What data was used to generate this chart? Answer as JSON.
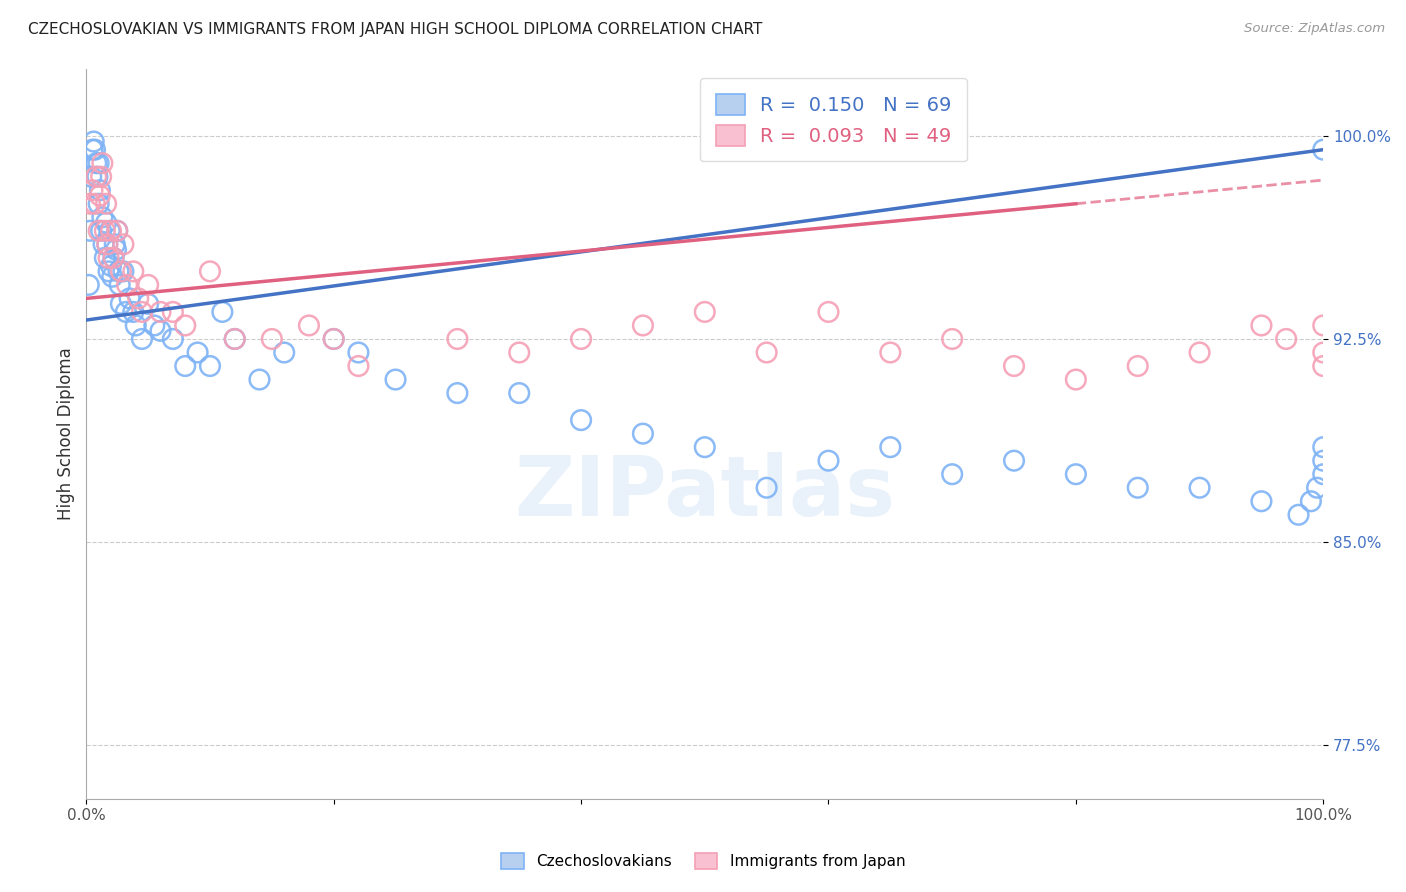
{
  "title": "CZECHOSLOVAKIAN VS IMMIGRANTS FROM JAPAN HIGH SCHOOL DIPLOMA CORRELATION CHART",
  "source": "Source: ZipAtlas.com",
  "ylabel": "High School Diploma",
  "xlim": [
    0,
    100
  ],
  "ylim": [
    75.5,
    102.5
  ],
  "yticks": [
    77.5,
    85.0,
    92.5,
    100.0
  ],
  "xticks": [
    0,
    20,
    40,
    60,
    80,
    100
  ],
  "xtick_labels": [
    "0.0%",
    "",
    "",
    "",
    "",
    "100.0%"
  ],
  "ytick_labels": [
    "77.5%",
    "85.0%",
    "92.5%",
    "100.0%"
  ],
  "legend_blue_R": "0.150",
  "legend_blue_N": "69",
  "legend_pink_R": "0.093",
  "legend_pink_N": "49",
  "blue_color": "#7EB3F5",
  "pink_color": "#F5A0B5",
  "blue_line_color": "#4472C4",
  "pink_line_color": "#E06080",
  "watermark": "ZIPatlas",
  "blue_x": [
    0.2,
    0.3,
    0.4,
    0.5,
    0.6,
    0.7,
    0.8,
    0.9,
    1.0,
    1.0,
    1.1,
    1.2,
    1.3,
    1.4,
    1.5,
    1.6,
    1.7,
    1.8,
    1.9,
    2.0,
    2.1,
    2.2,
    2.3,
    2.4,
    2.5,
    2.6,
    2.7,
    2.8,
    3.0,
    3.2,
    3.5,
    3.8,
    4.0,
    4.5,
    5.0,
    5.5,
    6.0,
    7.0,
    8.0,
    9.0,
    10.0,
    11.0,
    12.0,
    14.0,
    16.0,
    20.0,
    22.0,
    25.0,
    30.0,
    35.0,
    40.0,
    45.0,
    50.0,
    55.0,
    60.0,
    65.0,
    70.0,
    75.0,
    80.0,
    85.0,
    90.0,
    95.0,
    98.0,
    99.0,
    99.5,
    100.0,
    100.0,
    100.0,
    100.0
  ],
  "blue_y": [
    94.5,
    96.5,
    98.5,
    99.5,
    99.8,
    99.5,
    99.0,
    98.5,
    99.0,
    97.5,
    98.0,
    96.5,
    97.0,
    96.0,
    95.5,
    96.8,
    96.0,
    95.0,
    96.5,
    95.2,
    94.8,
    95.5,
    96.0,
    95.8,
    96.5,
    95.0,
    94.5,
    93.8,
    95.0,
    93.5,
    94.0,
    93.5,
    93.0,
    92.5,
    93.8,
    93.0,
    92.8,
    92.5,
    91.5,
    92.0,
    91.5,
    93.5,
    92.5,
    91.0,
    92.0,
    92.5,
    92.0,
    91.0,
    90.5,
    90.5,
    89.5,
    89.0,
    88.5,
    87.0,
    88.0,
    88.5,
    87.5,
    88.0,
    87.5,
    87.0,
    87.0,
    86.5,
    86.0,
    86.5,
    87.0,
    87.5,
    88.0,
    88.5,
    99.5
  ],
  "pink_x": [
    0.3,
    0.5,
    0.7,
    0.8,
    1.0,
    1.1,
    1.2,
    1.3,
    1.5,
    1.6,
    1.7,
    1.8,
    2.0,
    2.2,
    2.5,
    2.8,
    3.0,
    3.3,
    3.8,
    4.2,
    4.5,
    5.0,
    6.0,
    7.0,
    8.0,
    10.0,
    12.0,
    15.0,
    18.0,
    20.0,
    22.0,
    30.0,
    35.0,
    40.0,
    45.0,
    50.0,
    55.0,
    60.0,
    65.0,
    70.0,
    75.0,
    80.0,
    85.0,
    90.0,
    95.0,
    97.0,
    100.0,
    100.0,
    100.0
  ],
  "pink_y": [
    97.5,
    98.0,
    97.5,
    98.5,
    96.5,
    97.8,
    98.5,
    99.0,
    96.5,
    97.5,
    96.0,
    95.5,
    96.5,
    95.5,
    96.5,
    95.0,
    96.0,
    94.5,
    95.0,
    94.0,
    93.5,
    94.5,
    93.5,
    93.5,
    93.0,
    95.0,
    92.5,
    92.5,
    93.0,
    92.5,
    91.5,
    92.5,
    92.0,
    92.5,
    93.0,
    93.5,
    92.0,
    93.5,
    92.0,
    92.5,
    91.5,
    91.0,
    91.5,
    92.0,
    93.0,
    92.5,
    92.0,
    93.0,
    91.5
  ],
  "blue_line_x0": 0,
  "blue_line_x1": 100,
  "blue_line_y0": 93.2,
  "blue_line_y1": 99.5,
  "pink_line_x0": 0,
  "pink_line_x1": 80,
  "pink_line_y0": 94.0,
  "pink_line_y1": 97.5
}
